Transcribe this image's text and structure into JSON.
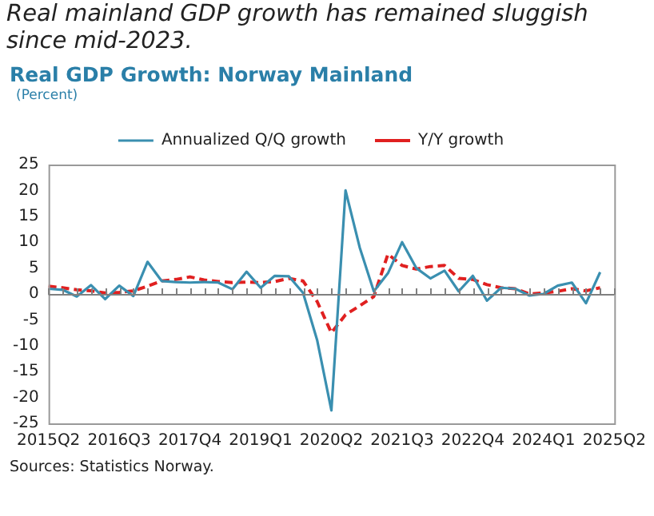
{
  "chart_data": {
    "type": "line",
    "title": "Real mainland GDP growth has remained sluggish since mid-2023.",
    "subtitle": "Real GDP Growth: Norway Mainland",
    "ylabel": "(Percent)",
    "categories": [
      "2015Q2",
      null,
      null,
      null,
      null,
      "2016Q3",
      null,
      null,
      null,
      null,
      "2017Q4",
      null,
      null,
      null,
      null,
      "2019Q1",
      null,
      null,
      null,
      null,
      "2020Q2",
      null,
      null,
      null,
      null,
      "2021Q3",
      null,
      null,
      null,
      null,
      "2022Q4",
      null,
      null,
      null,
      null,
      "2024Q1",
      null,
      null,
      null,
      null,
      "2025Q2"
    ],
    "series": [
      {
        "name": "Annualized Q/Q growth",
        "color": "#3a8fb0",
        "line_style": "solid",
        "values": [
          1.0,
          0.8,
          -0.5,
          1.7,
          -1.0,
          1.6,
          -0.4,
          6.2,
          2.5,
          2.3,
          2.2,
          2.3,
          2.2,
          0.9,
          4.3,
          1.2,
          3.5,
          3.4,
          0.2,
          -9,
          -22.5,
          20,
          9,
          0.5,
          4,
          10,
          5,
          3,
          4.5,
          0.5,
          3.5,
          -1.3,
          1.2,
          1.0,
          -0.3,
          0.0,
          1.6,
          2.2,
          -1.8,
          4.2,
          null
        ]
      },
      {
        "name": "Y/Y growth",
        "color": "#e02020",
        "line_style": "dashed",
        "values": [
          1.5,
          1.2,
          0.8,
          0.6,
          0.2,
          0.3,
          0.6,
          1.5,
          2.5,
          2.8,
          3.3,
          2.7,
          2.4,
          2.2,
          2.3,
          2.2,
          2.4,
          3.0,
          2.5,
          -1.5,
          -7.5,
          -4,
          -2.3,
          -0.5,
          7.7,
          5.5,
          4.8,
          5.3,
          5.5,
          3,
          2.8,
          1.8,
          1.2,
          1.0,
          0,
          0.2,
          0.5,
          1.0,
          0.6,
          1.2,
          null
        ]
      }
    ],
    "ylim": [
      -25,
      25
    ],
    "yticks": [
      -25,
      -20,
      -15,
      -10,
      -5,
      0,
      5,
      10,
      15,
      20,
      25
    ],
    "grid": false,
    "legend": "top",
    "marker": "none",
    "ref_lines": [
      {
        "axis": "y",
        "value": 0,
        "color": "#808080"
      }
    ],
    "annotations": [
      "Sources: Statistics Norway."
    ]
  }
}
